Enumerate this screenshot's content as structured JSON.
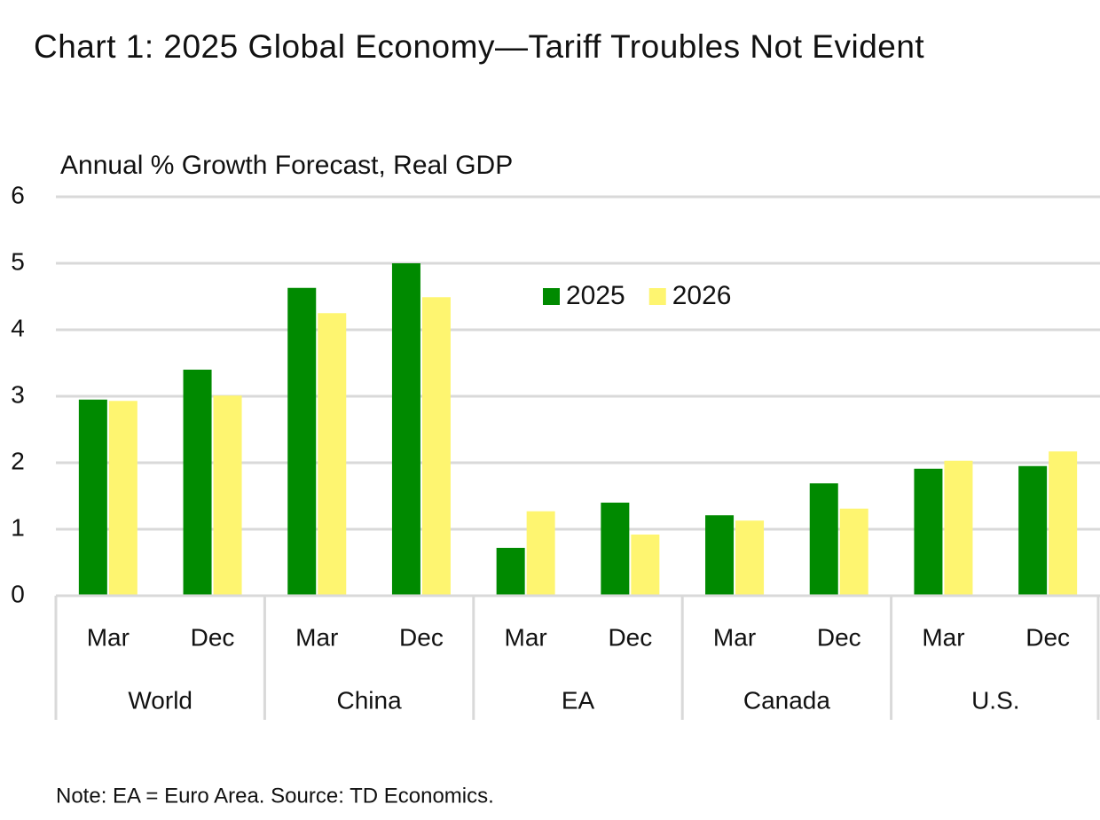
{
  "chart_data": {
    "type": "bar",
    "title": "Chart 1: 2025 Global Economy—Tariff Troubles Not Evident",
    "y_label": "Annual % Growth Forecast, Real GDP",
    "note": "Note: EA = Euro Area. Source: TD Economics.",
    "categories": [
      "Mar",
      "Dec",
      "Mar",
      "Dec",
      "Mar",
      "Dec",
      "Mar",
      "Dec",
      "Mar",
      "Dec"
    ],
    "groups": [
      "World",
      "China",
      "EA",
      "Canada",
      "U.S."
    ],
    "series": [
      {
        "name": "2025",
        "color": "#008a00",
        "values": [
          2.95,
          3.4,
          4.63,
          5.0,
          0.72,
          1.4,
          1.21,
          1.69,
          1.91,
          1.95
        ]
      },
      {
        "name": "2026",
        "color": "#fef570",
        "values": [
          2.93,
          3.01,
          4.25,
          4.49,
          1.27,
          0.92,
          1.13,
          1.31,
          2.03,
          2.17
        ]
      }
    ],
    "ylim": [
      0,
      6
    ],
    "yticks": [
      0,
      1,
      2,
      3,
      4,
      5,
      6
    ],
    "grid": true
  }
}
